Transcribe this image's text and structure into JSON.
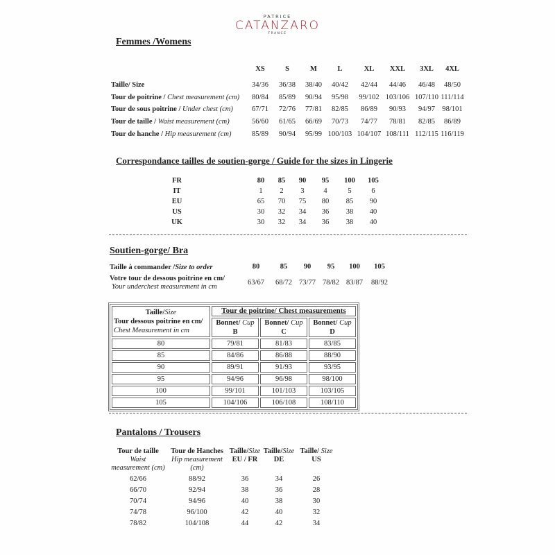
{
  "logo": {
    "top": "PATRICE",
    "main": "CATANZARO",
    "bottom": "FRANCE",
    "color": "#a3262e"
  },
  "women": {
    "title": "Femmes /Womens",
    "sizes": [
      "XS",
      "S",
      "M",
      "L",
      "XL",
      "XXL",
      "3XL",
      "4XL"
    ],
    "rows": [
      {
        "label": "Taille/ Size",
        "label_en": "",
        "values": [
          "34/36",
          "36/38",
          "38/40",
          "40/42",
          "42/44",
          "44/46",
          "46/48",
          "48/50"
        ]
      },
      {
        "label": "Tour de poitrine / ",
        "label_en": "Chest measurement (cm)",
        "values": [
          "80/84",
          "85/89",
          "90/94",
          "95/98",
          "99/102",
          "103/106",
          "107/110",
          "111/114"
        ]
      },
      {
        "label": "Tour de sous poitrine / ",
        "label_en": "Under chest (cm)",
        "values": [
          "67/71",
          "72/76",
          "77/81",
          "82/85",
          "86/89",
          "90/93",
          "94/97",
          "98/101"
        ]
      },
      {
        "label": "Tour de taille / ",
        "label_en": "Waist measurement (cm)",
        "values": [
          "56/60",
          "61/65",
          "66/69",
          "70/73",
          "74/77",
          "78/81",
          "82/85",
          "86/89"
        ]
      },
      {
        "label": "Tour de hanche / ",
        "label_en": "Hip measurement (cm)",
        "values": [
          "85/89",
          "90/94",
          "95/99",
          "100/103",
          "104/107",
          "108/111",
          "112/115",
          "116/119"
        ]
      }
    ]
  },
  "lingerie": {
    "title": "Correspondance tailles de soutien-gorge / Guide for the sizes in Lingerie",
    "rows": [
      {
        "label": "FR",
        "values": [
          "80",
          "85",
          "90",
          "95",
          "100",
          "105"
        ]
      },
      {
        "label": "IT",
        "values": [
          "1",
          "2",
          "3",
          "4",
          "5",
          "6"
        ]
      },
      {
        "label": "EU",
        "values": [
          "65",
          "70",
          "75",
          "80",
          "85",
          "90"
        ]
      },
      {
        "label": "US",
        "values": [
          "30",
          "32",
          "34",
          "36",
          "38",
          "40"
        ]
      },
      {
        "label": "UK",
        "values": [
          "30",
          "32",
          "34",
          "36",
          "38",
          "40"
        ]
      }
    ]
  },
  "bra": {
    "title": "Soutien-gorge/ Bra",
    "order_label": "Taille à commander /",
    "order_label_en": "Size to order",
    "order_sizes": [
      "80",
      "85",
      "90",
      "95",
      "100",
      "105"
    ],
    "underchest_label": "Votre tour de dessous poitrine en cm/",
    "underchest_label_en": "Your underchest measurement in cm",
    "underchest_values": [
      "63/67",
      "68/72",
      "73/77",
      "78/82",
      "83/87",
      "88/92"
    ],
    "table": {
      "size_label": "Taille/",
      "size_label_en": "Size",
      "under_label": "Tour dessous poitrine en cm/",
      "under_label_en": "Chest Measurement in cm",
      "chest_header": "Tour de poitrine/ Chest measurements",
      "cup_label": "Bonnet/",
      "cup_label_en": "Cup",
      "cups": [
        "B",
        "C",
        "D"
      ],
      "rows": [
        {
          "size": "80",
          "values": [
            "79/81",
            "81/83",
            "83/85"
          ]
        },
        {
          "size": "85",
          "values": [
            "84/86",
            "86/88",
            "88/90"
          ]
        },
        {
          "size": "90",
          "values": [
            "89/91",
            "91/93",
            "93/95"
          ]
        },
        {
          "size": "95",
          "values": [
            "94/96",
            "96/98",
            "98/100"
          ]
        },
        {
          "size": "100",
          "values": [
            "99/101",
            "101/103",
            "103/105"
          ]
        },
        {
          "size": "105",
          "values": [
            "104/106",
            "106/108",
            "108/110"
          ]
        }
      ]
    }
  },
  "trousers": {
    "title": "Pantalons / Trousers",
    "headers": [
      {
        "fr": "Tour de taille",
        "en": "Waist",
        "en2": "measurement (cm)",
        "fr2": ""
      },
      {
        "fr": "Tour de Hanches",
        "en": "Hip measurement",
        "en2": "(cm)",
        "fr2": ""
      },
      {
        "fr": "Taille/",
        "en": "Size",
        "fr2": "EU / FR",
        "en2": ""
      },
      {
        "fr": "Taille/",
        "en": "Size",
        "fr2": "DE",
        "en2": ""
      },
      {
        "fr": "Taille/ ",
        "en": "Size",
        "fr2": "US",
        "en2": ""
      }
    ],
    "rows": [
      [
        "62/66",
        "88/92",
        "36",
        "34",
        "26"
      ],
      [
        "66/70",
        "92/94",
        "38",
        "36",
        "28"
      ],
      [
        "70/74",
        "94/96",
        "40",
        "38",
        "30"
      ],
      [
        "74/78",
        "96/100",
        "42",
        "40",
        "32"
      ],
      [
        "78/82",
        "104/108",
        "44",
        "42",
        "34"
      ]
    ]
  }
}
